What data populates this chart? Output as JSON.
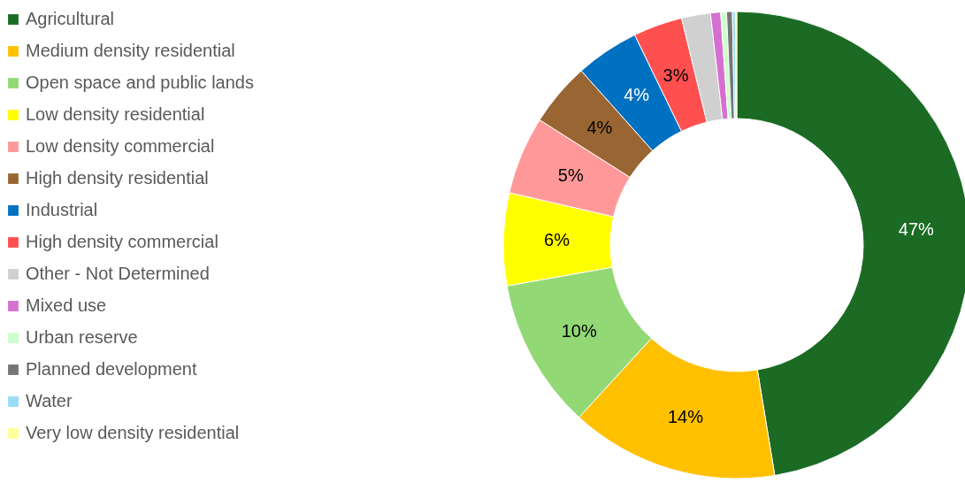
{
  "chart_data": {
    "type": "donut",
    "categories": [
      "Agricultural",
      "Medium density residential",
      "Open space and public lands",
      "Low density residential",
      "Low density commercial",
      "High density residential",
      "Industrial",
      "High density commercial",
      "Other - Not Determined",
      "Mixed use",
      "Urban reserve",
      "Planned development",
      "Water",
      "Very low density residential"
    ],
    "values": [
      47.4,
      14.4,
      10.4,
      6.4,
      5.4,
      4.4,
      4.4,
      3.4,
      2.0,
      0.7,
      0.4,
      0.4,
      0.2,
      0.1
    ],
    "colors": [
      "#1b6b24",
      "#ffc000",
      "#92d975",
      "#ffff00",
      "#ff9999",
      "#996633",
      "#0070c0",
      "#ff5050",
      "#d0d0d0",
      "#d670d0",
      "#ccffcc",
      "#767676",
      "#99dcf6",
      "#ffff99"
    ],
    "value_labels": [
      "47%",
      "14%",
      "10%",
      "6%",
      "5%",
      "4%",
      "4%",
      "3%",
      null,
      null,
      null,
      null,
      null,
      null
    ],
    "legend": "left"
  }
}
